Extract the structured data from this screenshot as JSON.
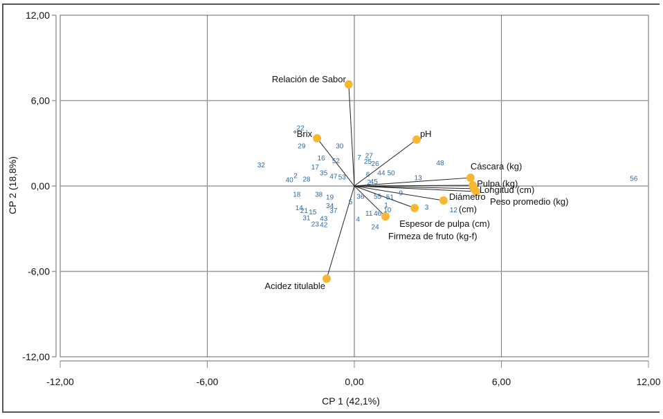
{
  "chart_data": {
    "type": "scatter",
    "subtype": "pca-biplot",
    "title": "",
    "xlabel": "CP 1 (42,1%)",
    "ylabel": "CP 2 (18,8%)",
    "xlim": [
      -12,
      12
    ],
    "ylim": [
      -12,
      12
    ],
    "xticks": [
      "-12,00",
      "-6,00",
      "0,00",
      "6,00",
      "12,00"
    ],
    "yticks": [
      "12,00",
      "6,00",
      "0,00",
      "-6,00",
      "-12,00"
    ],
    "xtick_values": [
      -12,
      -6,
      0,
      6,
      12
    ],
    "ytick_values": [
      12,
      6,
      0,
      -6,
      -12
    ],
    "grid": true,
    "colors": {
      "loading_point": "#f7b733",
      "score_label": "#2a6aa6",
      "vector": "#222222",
      "grid": "#999999"
    },
    "loadings": [
      {
        "name": "Relación de Sabor",
        "x": -0.23,
        "y": 7.14,
        "anchor": "end"
      },
      {
        "name": "°Brix",
        "x": -1.52,
        "y": 3.35,
        "anchor": "end"
      },
      {
        "name": "pH",
        "x": 2.54,
        "y": 3.26,
        "anchor": "start"
      },
      {
        "name": "Cáscara (kg)",
        "x": 4.74,
        "y": 0.58,
        "anchor": "start"
      },
      {
        "name": "Pulpa (kg)",
        "x": 4.83,
        "y": 0.05,
        "anchor": "start"
      },
      {
        "name": "Longitud (cm)",
        "x": 4.88,
        "y": -0.19,
        "anchor": "start"
      },
      {
        "name": "Peso promedio (kg)",
        "x": 4.97,
        "y": -0.39,
        "anchor": "start"
      },
      {
        "name": "Diámetro (cm)",
        "x": 3.64,
        "y": -1.02,
        "anchor": "start"
      },
      {
        "name": "Espesor de pulpa (cm)",
        "x": 2.46,
        "y": -1.55,
        "anchor": "start"
      },
      {
        "name": "Firmeza de fruto (kg-f)",
        "x": 1.27,
        "y": -2.14,
        "anchor": "start"
      },
      {
        "name": "Acidez titulable",
        "x": -1.13,
        "y": -6.51,
        "anchor": "end"
      }
    ],
    "scores": [
      {
        "label": "22",
        "x": -2.2,
        "y": 4.1
      },
      {
        "label": "29",
        "x": -2.15,
        "y": 2.85
      },
      {
        "label": "30",
        "x": -0.6,
        "y": 2.85
      },
      {
        "label": "32",
        "x": -3.8,
        "y": 1.5
      },
      {
        "label": "16",
        "x": -1.35,
        "y": 2.0
      },
      {
        "label": "52",
        "x": -0.75,
        "y": 1.8
      },
      {
        "label": "17",
        "x": -1.6,
        "y": 1.35
      },
      {
        "label": "35",
        "x": -1.25,
        "y": 0.95
      },
      {
        "label": "47",
        "x": -0.85,
        "y": 0.7
      },
      {
        "label": "53",
        "x": -0.5,
        "y": 0.65
      },
      {
        "label": "40",
        "x": -2.65,
        "y": 0.45
      },
      {
        "label": "2",
        "x": -2.4,
        "y": 0.75
      },
      {
        "label": "28",
        "x": -1.95,
        "y": 0.5
      },
      {
        "label": "7",
        "x": 0.2,
        "y": 2.05
      },
      {
        "label": "27",
        "x": 0.6,
        "y": 2.15
      },
      {
        "label": "25",
        "x": 0.55,
        "y": 1.75
      },
      {
        "label": "26",
        "x": 0.85,
        "y": 1.6
      },
      {
        "label": "6",
        "x": 0.55,
        "y": 0.85
      },
      {
        "label": "44",
        "x": 1.1,
        "y": 0.95
      },
      {
        "label": "50",
        "x": 1.5,
        "y": 0.95
      },
      {
        "label": "2",
        "x": 0.6,
        "y": 0.3
      },
      {
        "label": "45",
        "x": 0.8,
        "y": 0.35
      },
      {
        "label": "48",
        "x": 3.5,
        "y": 1.65
      },
      {
        "label": "13",
        "x": 2.6,
        "y": 0.6
      },
      {
        "label": "56",
        "x": 11.4,
        "y": 0.55
      },
      {
        "label": "18",
        "x": -2.35,
        "y": -0.55
      },
      {
        "label": "38",
        "x": -1.45,
        "y": -0.55
      },
      {
        "label": "19",
        "x": -1.0,
        "y": -0.75
      },
      {
        "label": "36",
        "x": 0.25,
        "y": -0.7
      },
      {
        "label": "55",
        "x": 0.95,
        "y": -0.7
      },
      {
        "label": "51",
        "x": 1.45,
        "y": -0.75
      },
      {
        "label": "9",
        "x": 1.9,
        "y": -0.45
      },
      {
        "label": "5",
        "x": -0.15,
        "y": -1.1
      },
      {
        "label": "34",
        "x": -1.0,
        "y": -1.35
      },
      {
        "label": "37",
        "x": -0.85,
        "y": -1.7
      },
      {
        "label": "14",
        "x": -2.25,
        "y": -1.5
      },
      {
        "label": "21",
        "x": -2.05,
        "y": -1.7
      },
      {
        "label": "15",
        "x": -1.7,
        "y": -1.8
      },
      {
        "label": "31",
        "x": -1.95,
        "y": -2.2
      },
      {
        "label": "43",
        "x": -1.25,
        "y": -2.25
      },
      {
        "label": "23",
        "x": -1.6,
        "y": -2.65
      },
      {
        "label": "42",
        "x": -1.25,
        "y": -2.7
      },
      {
        "label": "1",
        "x": 1.3,
        "y": -1.3
      },
      {
        "label": "10",
        "x": 1.35,
        "y": -1.65
      },
      {
        "label": "11",
        "x": 0.6,
        "y": -1.9
      },
      {
        "label": "46",
        "x": 0.95,
        "y": -1.9
      },
      {
        "label": "4",
        "x": 0.15,
        "y": -2.3
      },
      {
        "label": "24",
        "x": 0.85,
        "y": -2.85
      },
      {
        "label": "3",
        "x": 2.95,
        "y": -1.45
      },
      {
        "label": "12",
        "x": 4.05,
        "y": -1.65
      }
    ]
  }
}
